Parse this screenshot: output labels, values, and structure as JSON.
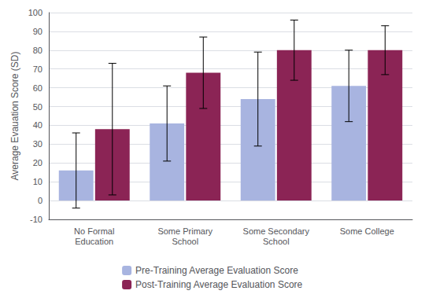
{
  "chart_data": {
    "type": "bar",
    "ylabel": "Average Evauation Score (SD)",
    "categories": [
      "No Formal\nEducation",
      "Some Primary\nSchool",
      "Some Secondary\nSchool",
      "Some College"
    ],
    "series": [
      {
        "name": "Pre-Training Average Evaluation Score",
        "color": "#a8b4e0",
        "values": [
          16,
          41,
          54,
          61
        ],
        "errors": [
          20,
          20,
          25,
          19
        ]
      },
      {
        "name": "Post-Training Average Evaluation Score",
        "color": "#8b2455",
        "values": [
          38,
          68,
          80,
          80
        ],
        "errors": [
          35,
          19,
          16,
          13
        ]
      }
    ],
    "ylim": [
      -10,
      100
    ],
    "yticks": [
      -10,
      0,
      10,
      20,
      30,
      40,
      50,
      60,
      70,
      80,
      90,
      100
    ],
    "grid": true,
    "legend": "bottom"
  }
}
